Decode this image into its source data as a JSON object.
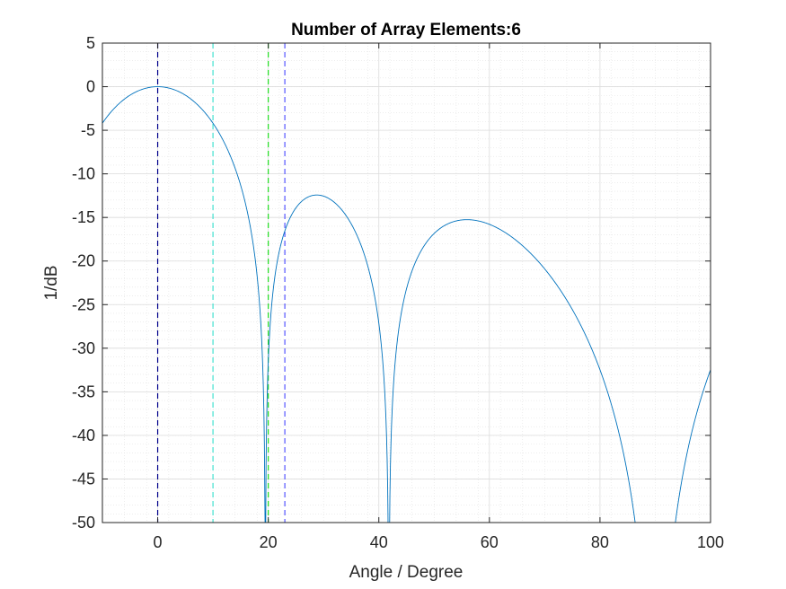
{
  "chart_data": {
    "type": "line",
    "title": "Number of Array Elements:6",
    "xlabel": "Angle / Degree",
    "ylabel": "1/dB",
    "xlim": [
      -10,
      100
    ],
    "ylim": [
      -50,
      5
    ],
    "xticks": [
      0,
      20,
      40,
      60,
      80,
      100
    ],
    "yticks": [
      5,
      0,
      -5,
      -10,
      -15,
      -20,
      -25,
      -30,
      -35,
      -40,
      -45,
      -50
    ],
    "grid": true,
    "minor_grid": true,
    "line_color": "#0072BD",
    "x_start": -10,
    "x_end": 100,
    "points_per_degree": 10,
    "reference_lines": [
      {
        "x": 0,
        "color": "#00008B"
      },
      {
        "x": 10,
        "color": "#40E0D0"
      },
      {
        "x": 20,
        "color": "#22DD22"
      },
      {
        "x": 23,
        "color": "#5555FF"
      }
    ]
  }
}
